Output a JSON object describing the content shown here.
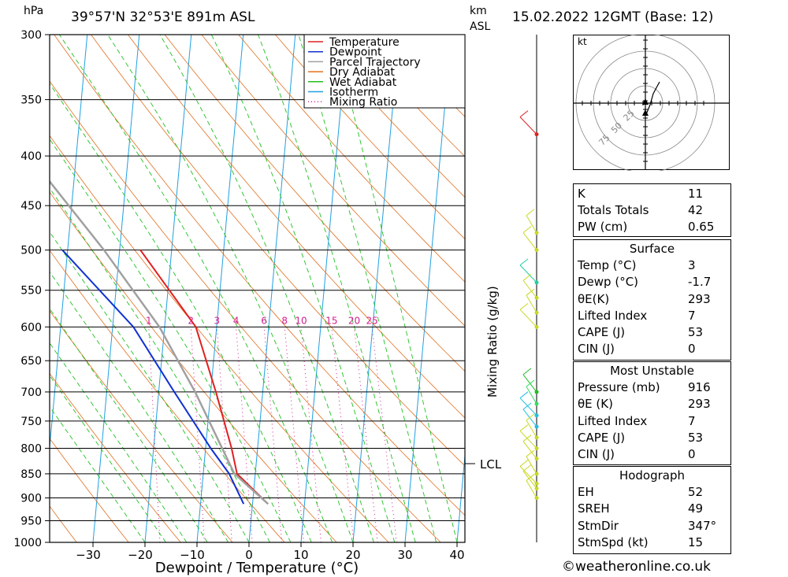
{
  "header": {
    "pressure_unit": "hPa",
    "location": "39°57'N 32°53'E 891m ASL",
    "km_label": "km",
    "asl_label": "ASL",
    "datetime": "15.02.2022 12GMT (Base: 12)"
  },
  "chart_data": {
    "type": "line",
    "chart_kind": "skew-T log-P diagram",
    "xlabel": "Dewpoint / Temperature (°C)",
    "ylabel": "hPa",
    "x_ticks": [
      -30,
      -20,
      -10,
      0,
      10,
      20,
      30,
      40
    ],
    "y_ticks": [
      300,
      350,
      400,
      450,
      500,
      550,
      600,
      650,
      700,
      750,
      800,
      850,
      900,
      950,
      1000
    ],
    "ylim": [
      1000,
      300
    ],
    "y_scale": "log",
    "right_axis_label": "Mixing Ratio (g/kg)",
    "mixing_ratio_labels": [
      "1",
      "2",
      "3",
      "4",
      "6",
      "8",
      "10",
      "15",
      "20",
      "25"
    ],
    "lcl_label": "LCL",
    "lcl_pressure": 850,
    "legend": [
      "Temperature",
      "Dewpoint",
      "Parcel Trajectory",
      "Dry Adiabat",
      "Wet Adiabat",
      "Isotherm",
      "Mixing Ratio"
    ],
    "legend_position": "top-right",
    "series": [
      {
        "name": "Temperature",
        "color": "#e02020",
        "points": [
          [
            913,
            3
          ],
          [
            850,
            -3.5
          ],
          [
            800,
            -5
          ],
          [
            700,
            -9
          ],
          [
            600,
            -14
          ],
          [
            500,
            -26
          ]
        ]
      },
      {
        "name": "Dewpoint",
        "color": "#1030d0",
        "points": [
          [
            913,
            -1.7
          ],
          [
            850,
            -5
          ],
          [
            800,
            -9
          ],
          [
            700,
            -17
          ],
          [
            600,
            -26
          ],
          [
            500,
            -41
          ]
        ]
      },
      {
        "name": "Parcel Trajectory",
        "color": "#a0a0a0",
        "points": [
          [
            913,
            3
          ],
          [
            850,
            -4
          ],
          [
            700,
            -13
          ],
          [
            600,
            -21
          ],
          [
            500,
            -33
          ],
          [
            400,
            -49
          ],
          [
            300,
            -70
          ]
        ]
      }
    ]
  },
  "wind_profile": {
    "pressures": [
      380,
      500,
      480,
      540,
      560,
      580,
      600,
      700,
      720,
      740,
      760,
      780,
      800,
      820,
      850,
      870,
      880,
      900
    ],
    "colors": [
      "#e02020",
      "#c8d820",
      "#c8d820",
      "#20d0a0",
      "#c8d820",
      "#c8d820",
      "#c8d820",
      "#20c020",
      "#30e060",
      "#20c0e0",
      "#20c0e0",
      "#c8d820",
      "#c8d820",
      "#c8d820",
      "#c8d820",
      "#c8d820",
      "#c8d820",
      "#c8d820"
    ]
  },
  "hodograph": {
    "unit_label": "kt",
    "ring_labels": [
      "25",
      "50",
      "75"
    ]
  },
  "indices": {
    "basic": [
      {
        "label": "K",
        "value": "11"
      },
      {
        "label": "Totals Totals",
        "value": "42"
      },
      {
        "label": "PW (cm)",
        "value": "0.65"
      }
    ],
    "surface_title": "Surface",
    "surface": [
      {
        "label": "Temp (°C)",
        "value": "3"
      },
      {
        "label": "Dewp (°C)",
        "value": "-1.7"
      },
      {
        "label": "θE(K)",
        "value": "293"
      },
      {
        "label": "Lifted Index",
        "value": "7"
      },
      {
        "label": "CAPE (J)",
        "value": "53"
      },
      {
        "label": "CIN (J)",
        "value": "0"
      }
    ],
    "mu_title": "Most Unstable",
    "mu": [
      {
        "label": "Pressure (mb)",
        "value": "916"
      },
      {
        "label": "θE (K)",
        "value": "293"
      },
      {
        "label": "Lifted Index",
        "value": "7"
      },
      {
        "label": "CAPE (J)",
        "value": "53"
      },
      {
        "label": "CIN (J)",
        "value": "0"
      }
    ],
    "hodo_title": "Hodograph",
    "hodo": [
      {
        "label": "EH",
        "value": "52"
      },
      {
        "label": "SREH",
        "value": "49"
      },
      {
        "label": "StmDir",
        "value": "347°"
      },
      {
        "label": "StmSpd (kt)",
        "value": "15"
      }
    ]
  },
  "footer": {
    "credit": "©weatheronline.co.uk"
  }
}
